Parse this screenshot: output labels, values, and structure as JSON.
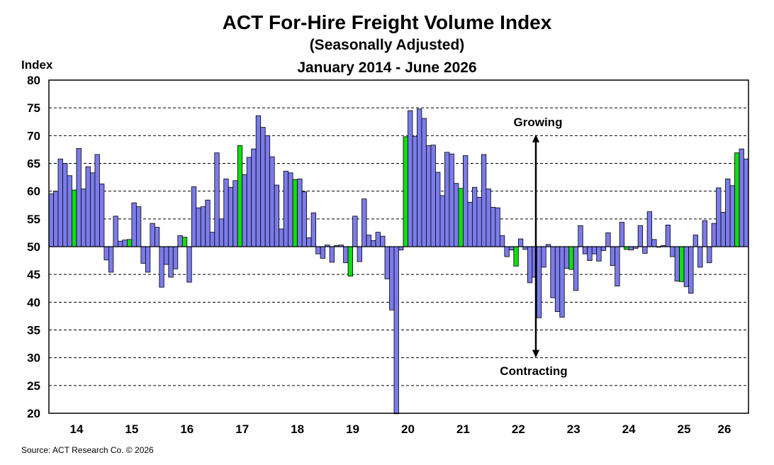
{
  "chart_data": {
    "type": "bar",
    "title": "ACT For-Hire Freight Volume Index",
    "subtitle": "(Seasonally Adjusted)",
    "subtitle2": "January 2014 - June 2026",
    "ylabel": "Index",
    "ylim": [
      20,
      80
    ],
    "yticks": [
      20,
      25,
      30,
      35,
      40,
      45,
      50,
      55,
      60,
      65,
      70,
      75,
      80
    ],
    "baseline": 50,
    "grid": true,
    "xtick_labels": [
      "14",
      "15",
      "16",
      "17",
      "18",
      "19",
      "20",
      "21",
      "22",
      "23",
      "24",
      "25",
      "26"
    ],
    "annotations": {
      "up": "Growing",
      "down": "Contracting"
    },
    "colors": {
      "bar": "#7b7bea",
      "highlight": "#11dd11",
      "grid": "#000000"
    },
    "highlight_month": "June",
    "series": [
      {
        "values": [
          59.5,
          60.0,
          65.8,
          65.0,
          62.8,
          60.2,
          67.7,
          60.4,
          64.4,
          63.3,
          66.6,
          61.3,
          47.6,
          45.4,
          55.5,
          51.0,
          51.2,
          51.3,
          57.9,
          57.2,
          47.0,
          45.4,
          54.2,
          53.5,
          42.7,
          46.8,
          44.5,
          46.0,
          52.0,
          51.7,
          43.6,
          60.8,
          57.0,
          57.2,
          58.4,
          52.6,
          66.9,
          55.0,
          62.2,
          60.7,
          61.9,
          68.2,
          63.0,
          66.1,
          67.6,
          73.6,
          71.5,
          70.0,
          66.2,
          61.1,
          53.2,
          63.6,
          63.3,
          62.1,
          62.2,
          59.9,
          51.6,
          56.1,
          48.7,
          47.9,
          50.3,
          47.2,
          50.2,
          50.3,
          47.1,
          44.7,
          55.5,
          47.3,
          58.6,
          52.1,
          51.1,
          52.6,
          51.9,
          44.2,
          38.6,
          19.9,
          49.4,
          69.8,
          74.5,
          69.9,
          74.8,
          73.1,
          68.2,
          68.3,
          63.4,
          59.2,
          67.0,
          66.7,
          61.4,
          60.5,
          66.4,
          58.0,
          60.7,
          58.9,
          66.6,
          60.4,
          57.1,
          57.0,
          52.0,
          48.2,
          49.4,
          46.5,
          51.4,
          49.5,
          43.5,
          44.5,
          37.2,
          46.3,
          50.4,
          40.8,
          38.3,
          37.3,
          46.1,
          45.9,
          42.1,
          53.8,
          48.7,
          47.5,
          48.7,
          47.4,
          49.3,
          52.5,
          46.6,
          42.9,
          54.4,
          49.5,
          49.4,
          49.7,
          53.8,
          48.8,
          56.3,
          51.3,
          49.9,
          50.2,
          53.9,
          48.2,
          43.8,
          43.7,
          42.8,
          41.6,
          52.1,
          46.3,
          54.7,
          47.1,
          54.2,
          60.6,
          56.2,
          62.2,
          61.0,
          66.9,
          67.6,
          65.8
        ]
      }
    ]
  },
  "source": "Source:  ACT Research Co. © 2026"
}
